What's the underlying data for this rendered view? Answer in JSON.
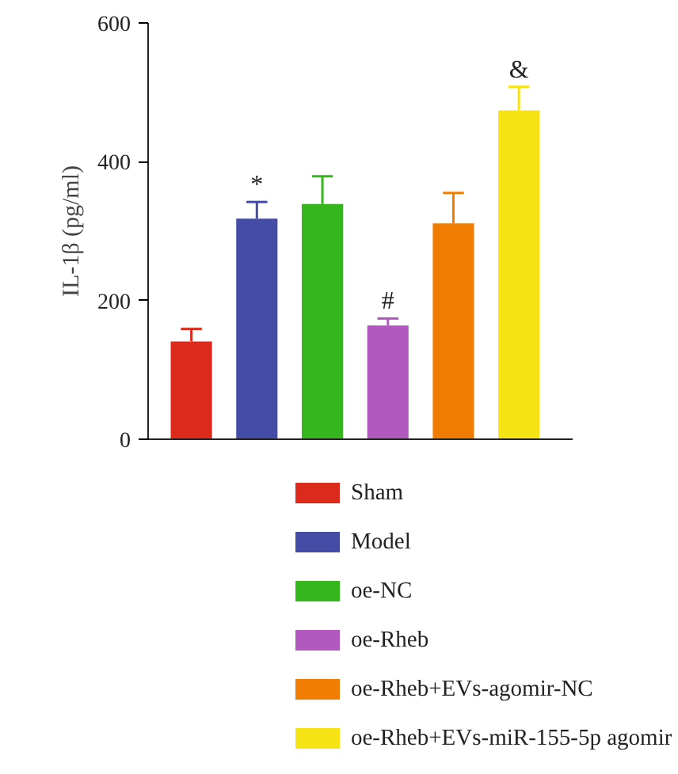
{
  "chart_data": {
    "type": "bar",
    "ylabel": "IL-1β (pg/ml)",
    "categories": [
      null,
      null,
      null,
      null,
      null,
      null
    ],
    "series": [
      {
        "name": "Sham",
        "color": "#dc2b1c",
        "values": [
          141,
          null,
          null,
          null,
          null,
          null
        ],
        "errors": [
          [
            141,
            159
          ],
          null,
          null,
          null,
          null,
          null
        ]
      },
      {
        "name": "Model",
        "color": "#454ca5",
        "values": [
          null,
          318,
          null,
          null,
          null,
          null
        ],
        "errors": [
          null,
          [
            318,
            342
          ],
          null,
          null,
          null,
          null
        ]
      },
      {
        "name": "oe-NC",
        "color": "#34b61c",
        "values": [
          null,
          null,
          339,
          null,
          null,
          null
        ],
        "errors": [
          null,
          null,
          [
            339,
            379
          ],
          null,
          null,
          null
        ]
      },
      {
        "name": "oe-Rheb",
        "color": "#b259c0",
        "values": [
          null,
          null,
          null,
          164,
          null,
          null
        ],
        "errors": [
          null,
          null,
          null,
          [
            164,
            174
          ],
          null,
          null
        ]
      },
      {
        "name": "oe-Rheb+EVs-agomir-NC",
        "color": "#f07d02",
        "values": [
          null,
          null,
          null,
          null,
          311,
          null
        ],
        "errors": [
          null,
          null,
          null,
          null,
          [
            311,
            355
          ],
          null
        ]
      },
      {
        "name": "oe-Rheb+EVs-miR-155-5p agomir",
        "color": "#f5e316",
        "values": [
          null,
          null,
          null,
          null,
          null,
          474
        ],
        "errors": [
          null,
          null,
          null,
          null,
          null,
          [
            474,
            508
          ]
        ]
      }
    ],
    "annotations": [
      {
        "text": "*",
        "y": 342
      },
      {
        "text": "#",
        "y": 174
      },
      {
        "text": "&",
        "y": 508
      }
    ],
    "ylim": [
      0,
      600
    ],
    "yticks": [
      0,
      200,
      400,
      600
    ],
    "grid": false,
    "legend": "bottom"
  }
}
